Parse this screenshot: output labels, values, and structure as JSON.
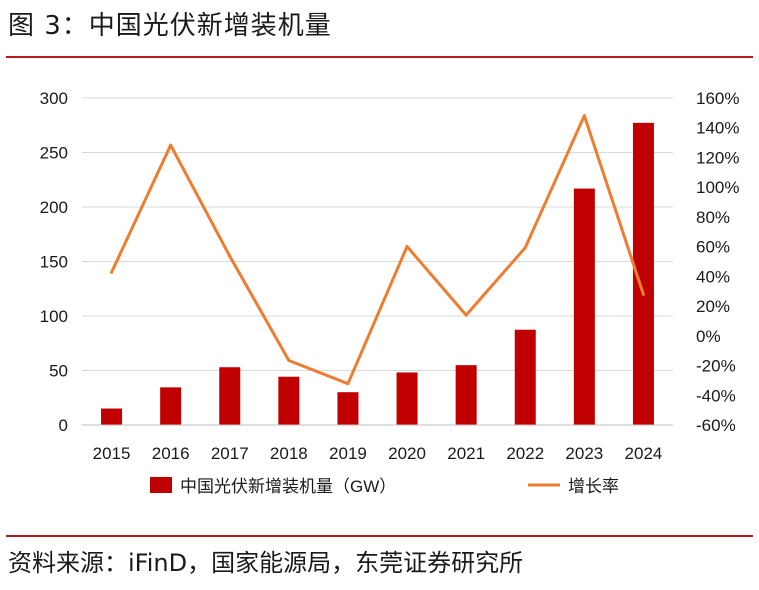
{
  "figure_title": "图 3：中国光伏新增装机量",
  "source": "资料来源：iFinD，国家能源局，东莞证券研究所",
  "colors": {
    "bar": "#c00000",
    "line": "#ed7d31",
    "rule": "#b71c1c",
    "grid": "#d9d9d9"
  },
  "chart_data": {
    "type": "bar+line",
    "title": "",
    "categories": [
      "2015",
      "2016",
      "2017",
      "2018",
      "2019",
      "2020",
      "2021",
      "2022",
      "2023",
      "2024"
    ],
    "series": [
      {
        "name": "中国光伏新增装机量（GW）",
        "type": "bar",
        "axis": "left",
        "values": [
          15.1,
          34.5,
          53.0,
          44.3,
          30.1,
          48.2,
          54.9,
          87.4,
          216.9,
          277.2
        ]
      },
      {
        "name": "增长率",
        "type": "line",
        "axis": "right",
        "unit": "%",
        "values": [
          42.7,
          128.3,
          53.6,
          -16.6,
          -32.2,
          60.1,
          13.9,
          59.3,
          148.1,
          27.8
        ]
      }
    ],
    "y_left": {
      "min": 0,
      "max": 300,
      "ticks": [
        "0",
        "50",
        "100",
        "150",
        "200",
        "250",
        "300"
      ]
    },
    "y_right": {
      "min": -60,
      "max": 160,
      "ticks": [
        "-60%",
        "-40%",
        "-20%",
        "0%",
        "20%",
        "40%",
        "60%",
        "80%",
        "100%",
        "120%",
        "140%",
        "160%"
      ]
    },
    "grid": true,
    "legend": "bottom"
  }
}
